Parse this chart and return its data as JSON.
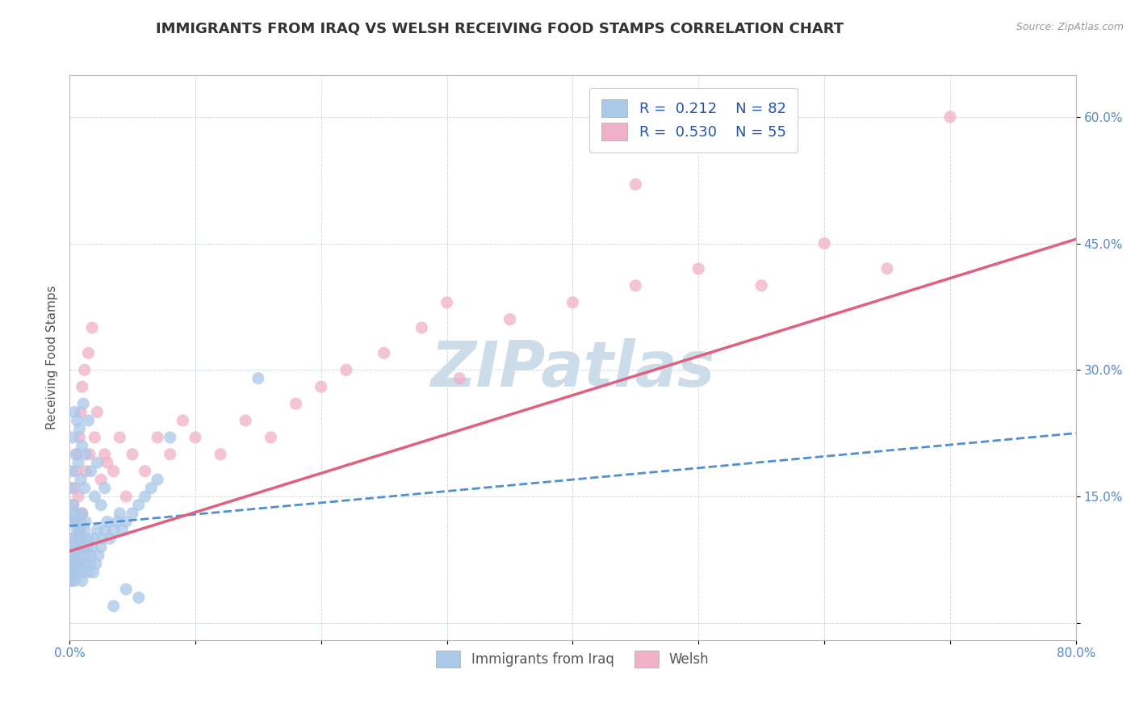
{
  "title": "IMMIGRANTS FROM IRAQ VS WELSH RECEIVING FOOD STAMPS CORRELATION CHART",
  "source": "Source: ZipAtlas.com",
  "ylabel": "Receiving Food Stamps",
  "xmin": 0.0,
  "xmax": 0.8,
  "ymin": -0.02,
  "ymax": 0.65,
  "yticks": [
    0.0,
    0.15,
    0.3,
    0.45,
    0.6
  ],
  "ytick_labels": [
    "",
    "15.0%",
    "30.0%",
    "45.0%",
    "60.0%"
  ],
  "series1_label": "Immigrants from Iraq",
  "series1_R": "0.212",
  "series1_N": "82",
  "series1_color": "#aac8e8",
  "series1_edge_color": "#7aaad0",
  "series1_trendline_color": "#5090d0",
  "series2_label": "Welsh",
  "series2_R": "0.530",
  "series2_N": "55",
  "series2_color": "#f0b0c8",
  "series2_edge_color": "#e080a0",
  "series2_trendline_color": "#e06080",
  "watermark": "ZIPatlas",
  "watermark_color": "#ccdce8",
  "background_color": "#ffffff",
  "grid_color": "#c8d4e0",
  "trend1_x0": 0.0,
  "trend1_y0": 0.115,
  "trend1_x1": 0.8,
  "trend1_y1": 0.225,
  "trend2_x0": 0.0,
  "trend2_y0": 0.085,
  "trend2_x1": 0.8,
  "trend2_y1": 0.455,
  "legend_color": "#2255aa",
  "title_fontsize": 13,
  "axis_label_fontsize": 11,
  "tick_fontsize": 11,
  "series1_x": [
    0.001,
    0.001,
    0.001,
    0.002,
    0.002,
    0.002,
    0.002,
    0.003,
    0.003,
    0.003,
    0.004,
    0.004,
    0.004,
    0.005,
    0.005,
    0.005,
    0.006,
    0.006,
    0.007,
    0.007,
    0.008,
    0.008,
    0.009,
    0.009,
    0.01,
    0.01,
    0.01,
    0.011,
    0.011,
    0.012,
    0.012,
    0.013,
    0.013,
    0.014,
    0.015,
    0.015,
    0.016,
    0.017,
    0.018,
    0.019,
    0.02,
    0.021,
    0.022,
    0.023,
    0.025,
    0.026,
    0.028,
    0.03,
    0.032,
    0.035,
    0.038,
    0.04,
    0.042,
    0.045,
    0.05,
    0.055,
    0.06,
    0.065,
    0.07,
    0.08,
    0.002,
    0.003,
    0.004,
    0.005,
    0.006,
    0.007,
    0.008,
    0.009,
    0.01,
    0.011,
    0.012,
    0.013,
    0.015,
    0.017,
    0.02,
    0.022,
    0.025,
    0.028,
    0.035,
    0.045,
    0.055,
    0.15
  ],
  "series1_y": [
    0.05,
    0.08,
    0.12,
    0.06,
    0.09,
    0.13,
    0.16,
    0.07,
    0.1,
    0.14,
    0.05,
    0.08,
    0.12,
    0.06,
    0.09,
    0.13,
    0.07,
    0.11,
    0.06,
    0.1,
    0.07,
    0.11,
    0.08,
    0.12,
    0.05,
    0.09,
    0.13,
    0.06,
    0.1,
    0.07,
    0.11,
    0.08,
    0.12,
    0.09,
    0.06,
    0.1,
    0.07,
    0.08,
    0.09,
    0.06,
    0.1,
    0.07,
    0.11,
    0.08,
    0.09,
    0.1,
    0.11,
    0.12,
    0.1,
    0.11,
    0.12,
    0.13,
    0.11,
    0.12,
    0.13,
    0.14,
    0.15,
    0.16,
    0.17,
    0.22,
    0.18,
    0.22,
    0.25,
    0.2,
    0.24,
    0.19,
    0.23,
    0.17,
    0.21,
    0.26,
    0.16,
    0.2,
    0.24,
    0.18,
    0.15,
    0.19,
    0.14,
    0.16,
    0.02,
    0.04,
    0.03,
    0.29
  ],
  "series2_x": [
    0.001,
    0.002,
    0.002,
    0.003,
    0.003,
    0.004,
    0.004,
    0.005,
    0.005,
    0.006,
    0.006,
    0.007,
    0.008,
    0.008,
    0.009,
    0.01,
    0.01,
    0.012,
    0.013,
    0.015,
    0.016,
    0.018,
    0.02,
    0.022,
    0.025,
    0.028,
    0.03,
    0.035,
    0.04,
    0.045,
    0.05,
    0.06,
    0.07,
    0.08,
    0.09,
    0.1,
    0.12,
    0.14,
    0.16,
    0.18,
    0.2,
    0.22,
    0.25,
    0.28,
    0.3,
    0.35,
    0.4,
    0.45,
    0.5,
    0.55,
    0.6,
    0.65,
    0.7,
    0.45,
    0.31
  ],
  "series2_y": [
    0.05,
    0.06,
    0.1,
    0.08,
    0.14,
    0.12,
    0.16,
    0.07,
    0.18,
    0.09,
    0.2,
    0.15,
    0.22,
    0.11,
    0.25,
    0.13,
    0.28,
    0.3,
    0.18,
    0.32,
    0.2,
    0.35,
    0.22,
    0.25,
    0.17,
    0.2,
    0.19,
    0.18,
    0.22,
    0.15,
    0.2,
    0.18,
    0.22,
    0.2,
    0.24,
    0.22,
    0.2,
    0.24,
    0.22,
    0.26,
    0.28,
    0.3,
    0.32,
    0.35,
    0.38,
    0.36,
    0.38,
    0.4,
    0.42,
    0.4,
    0.45,
    0.42,
    0.6,
    0.52,
    0.29
  ]
}
